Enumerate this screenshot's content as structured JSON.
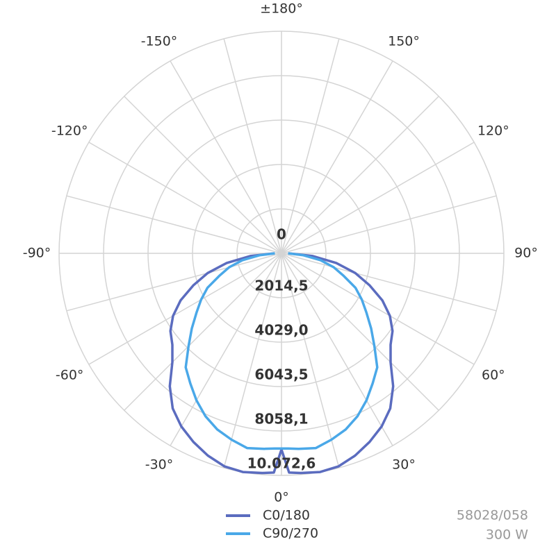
{
  "chart_data": {
    "type": "polar",
    "angles": [
      -90,
      -85,
      -80,
      -75,
      -70,
      -65,
      -60,
      -55,
      -50,
      -45,
      -40,
      -35,
      -30,
      -25,
      -20,
      -15,
      -10,
      -5,
      -2,
      0,
      2,
      5,
      10,
      15,
      20,
      25,
      30,
      35,
      40,
      45,
      50,
      55,
      60,
      65,
      70,
      75,
      80,
      85,
      90
    ],
    "series": [
      {
        "name": "C0/180",
        "color": "#5b6cbf",
        "values": [
          315,
          1420,
          2520,
          3460,
          4250,
          5040,
          5670,
          6140,
          6450,
          6990,
          7870,
          8590,
          9070,
          9440,
          9760,
          10000,
          10070,
          10000,
          9950,
          8900,
          9950,
          10000,
          10070,
          10000,
          9760,
          9440,
          9070,
          8590,
          7870,
          6990,
          6450,
          6140,
          5670,
          5040,
          4250,
          3460,
          2520,
          1420,
          315
        ]
      },
      {
        "name": "C90/270",
        "color": "#4aa8e8",
        "values": [
          300,
          1000,
          1800,
          2450,
          3000,
          3700,
          4200,
          4700,
          5300,
          5950,
          6750,
          7200,
          7700,
          8150,
          8500,
          8750,
          8970,
          8900,
          8860,
          8850,
          8860,
          8900,
          8970,
          8750,
          8500,
          8150,
          7700,
          7200,
          6750,
          5950,
          5300,
          4700,
          4200,
          3700,
          3000,
          2450,
          1800,
          1000,
          300
        ]
      }
    ],
    "rlim": [
      0,
      10072.6
    ],
    "rticks": [
      0,
      {
        "value": 2014.5,
        "label": "2014,5"
      },
      {
        "value": 4029.0,
        "label": "4029,0"
      },
      {
        "value": 6043.5,
        "label": "6043,5"
      },
      {
        "value": 8058.1,
        "label": "8058,1"
      },
      {
        "value": 10072.6,
        "label": "10.072,6"
      }
    ],
    "angle_ticks": [
      {
        "value": 0,
        "label": "0°"
      },
      {
        "value": 30,
        "label": "30°"
      },
      {
        "value": 60,
        "label": "60°"
      },
      {
        "value": 90,
        "label": "90°"
      },
      {
        "value": 120,
        "label": "120°"
      },
      {
        "value": 150,
        "label": "150°"
      },
      {
        "value": 180,
        "label": "±180°"
      },
      {
        "value": -150,
        "label": "-150°"
      },
      {
        "value": -120,
        "label": "-120°"
      },
      {
        "value": -90,
        "label": "-90°"
      },
      {
        "value": -60,
        "label": "-60°"
      },
      {
        "value": -30,
        "label": "-30°"
      }
    ],
    "minor_angle_ticks": [
      15,
      45,
      75,
      105,
      135,
      165,
      -15,
      -45,
      -75,
      -105,
      -135,
      -165
    ],
    "notes": [
      "58028/058",
      "300 W"
    ]
  }
}
